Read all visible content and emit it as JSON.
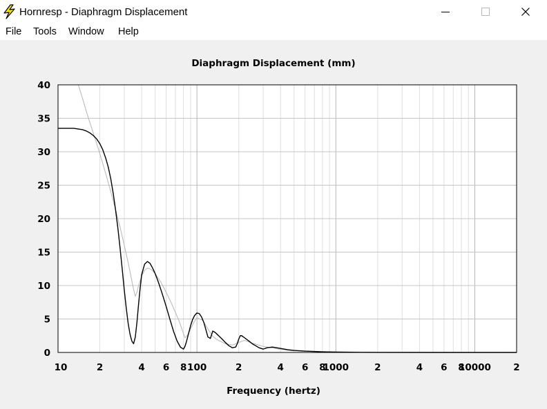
{
  "window": {
    "title": "Hornresp - Diaphragm Displacement",
    "icon": "lightning-bolt-icon",
    "controls": [
      "minimize-icon",
      "maximize-icon",
      "close-icon"
    ]
  },
  "menu": {
    "items": [
      "File",
      "Tools",
      "Window",
      "Help"
    ]
  },
  "chart_data": {
    "type": "line",
    "title": "Diaphragm Displacement (mm)",
    "xlabel": "Frequency (hertz)",
    "ylabel": "",
    "x_scale": "log",
    "xlim": [
      10,
      20000
    ],
    "ylim": [
      0,
      40
    ],
    "grid": true,
    "legend": "none",
    "y_ticks": [
      "0",
      "5",
      "10",
      "15",
      "20",
      "25",
      "30",
      "35",
      "40"
    ],
    "x_ticks": [
      {
        "value": 10,
        "label": "10"
      },
      {
        "value": 20,
        "label": "2"
      },
      {
        "value": 40,
        "label": "4"
      },
      {
        "value": 60,
        "label": "6"
      },
      {
        "value": 80,
        "label": "8"
      },
      {
        "value": 100,
        "label": "100"
      },
      {
        "value": 200,
        "label": "2"
      },
      {
        "value": 400,
        "label": "4"
      },
      {
        "value": 600,
        "label": "6"
      },
      {
        "value": 800,
        "label": "8"
      },
      {
        "value": 1000,
        "label": "1000"
      },
      {
        "value": 2000,
        "label": "2"
      },
      {
        "value": 4000,
        "label": "4"
      },
      {
        "value": 6000,
        "label": "6"
      },
      {
        "value": 8000,
        "label": "8"
      },
      {
        "value": 10000,
        "label": "10000"
      },
      {
        "value": 20000,
        "label": "2"
      }
    ],
    "series": [
      {
        "color": "#000000",
        "x": [
          10,
          11,
          12,
          13,
          14,
          15,
          16,
          17,
          18,
          19,
          20,
          21,
          22,
          23,
          24,
          25,
          26,
          27,
          28,
          29,
          30,
          31,
          32,
          33,
          34,
          35,
          36,
          37,
          38,
          39,
          40,
          42,
          44,
          46,
          48,
          50,
          53,
          56,
          60,
          64,
          68,
          72,
          76,
          80,
          82,
          84,
          86,
          88,
          90,
          93,
          96,
          100,
          104,
          108,
          112,
          116,
          120,
          125,
          130,
          135,
          140,
          145,
          150,
          155,
          160,
          170,
          180,
          190,
          195,
          200,
          205,
          210,
          220,
          230,
          240,
          250,
          260,
          280,
          300,
          320,
          350,
          400,
          450,
          500,
          600,
          700,
          800,
          1000,
          1500,
          2000,
          5000,
          10000,
          20000
        ],
        "y": [
          33.5,
          33.5,
          33.5,
          33.5,
          33.4,
          33.3,
          33.1,
          32.8,
          32.4,
          31.9,
          31.2,
          30.3,
          29.1,
          27.7,
          25.9,
          23.7,
          21.2,
          18.5,
          15.5,
          12.4,
          9.3,
          6.6,
          4.3,
          2.7,
          1.7,
          1.3,
          2.3,
          4.5,
          7.2,
          9.6,
          11.6,
          13.2,
          13.6,
          13.3,
          12.6,
          11.8,
          10.4,
          8.9,
          6.9,
          4.9,
          3.1,
          1.7,
          0.8,
          0.5,
          0.9,
          1.6,
          2.4,
          3.2,
          4.0,
          4.9,
          5.5,
          5.9,
          5.8,
          5.3,
          4.5,
          3.4,
          2.3,
          2.1,
          3.2,
          3.0,
          2.7,
          2.4,
          2.1,
          1.8,
          1.5,
          1.0,
          0.7,
          0.8,
          1.3,
          2.0,
          2.5,
          2.5,
          2.2,
          1.9,
          1.6,
          1.3,
          1.1,
          0.7,
          0.5,
          0.7,
          0.8,
          0.6,
          0.4,
          0.3,
          0.2,
          0.15,
          0.1,
          0.05,
          0.02,
          0.01,
          0.0,
          0.0,
          0.0
        ]
      },
      {
        "color": "#bbbbbb",
        "x": [
          14,
          15,
          16,
          17,
          18,
          19,
          20,
          22,
          24,
          26,
          28,
          30,
          32,
          34,
          35,
          36,
          37,
          38,
          40,
          42,
          44,
          46,
          48,
          50,
          55,
          60,
          65,
          70,
          75,
          80,
          82,
          85,
          90,
          95,
          100,
          110,
          120,
          130,
          140,
          150,
          160,
          180,
          200,
          220,
          250,
          300,
          400,
          500,
          700,
          1000,
          2000,
          5000,
          20000
        ],
        "y": [
          40.0,
          38.0,
          36.0,
          34.3,
          32.7,
          31.2,
          29.7,
          26.8,
          24.0,
          21.3,
          18.7,
          16.0,
          13.4,
          10.7,
          9.4,
          8.4,
          9.0,
          10.0,
          11.4,
          12.3,
          12.6,
          12.5,
          12.2,
          11.8,
          10.5,
          9.0,
          7.5,
          6.0,
          4.5,
          2.8,
          2.2,
          2.5,
          3.5,
          4.5,
          5.2,
          4.8,
          3.5,
          2.4,
          1.9,
          1.6,
          1.3,
          1.1,
          1.5,
          1.8,
          1.4,
          0.9,
          0.45,
          0.25,
          0.12,
          0.07,
          0.03,
          0.01,
          0.0
        ]
      }
    ]
  }
}
